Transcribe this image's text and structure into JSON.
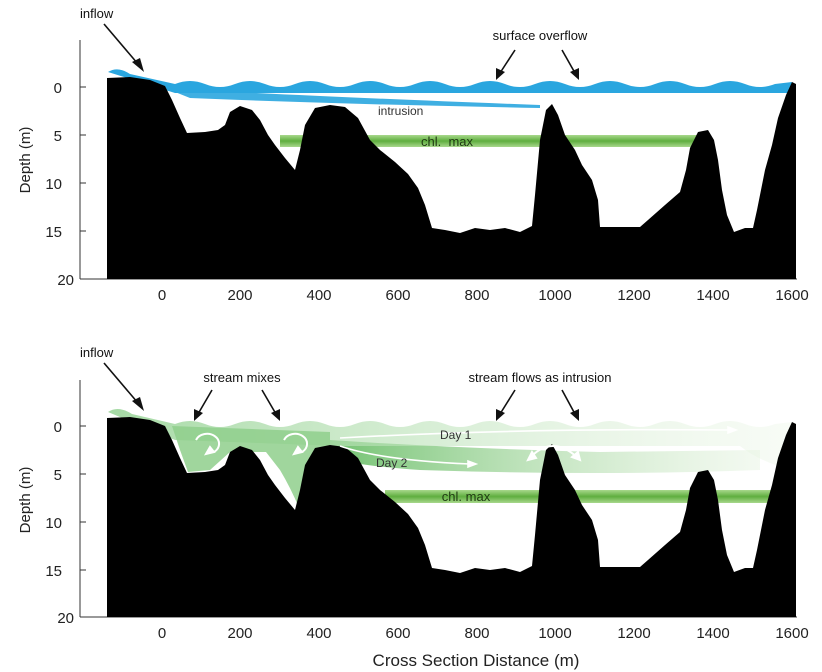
{
  "figure": {
    "x_axis_label": "Cross Section Distance (m)",
    "y_axis_label": "Depth (m)",
    "x_ticks": [
      "0",
      "200",
      "400",
      "600",
      "800",
      "1000",
      "1200",
      "1400",
      "1600"
    ],
    "y_ticks": [
      "0",
      "5",
      "10",
      "15",
      "20"
    ]
  },
  "panel_top": {
    "inflow": "inflow",
    "surface_overflow": "surface overflow",
    "intrusion": "intrusion",
    "chl_max": "chl.  max"
  },
  "panel_bottom": {
    "inflow": "inflow",
    "stream_mixes": "stream mixes",
    "stream_flows": "stream flows as intrusion",
    "day1": "Day 1",
    "day2": "Day 2",
    "chl_max": "chl. max"
  },
  "colors": {
    "terrain": "#000000",
    "overflow_water": "#2aa6df",
    "chl_band": "#7cc05a",
    "mixing_water": "#8fcf8c"
  }
}
